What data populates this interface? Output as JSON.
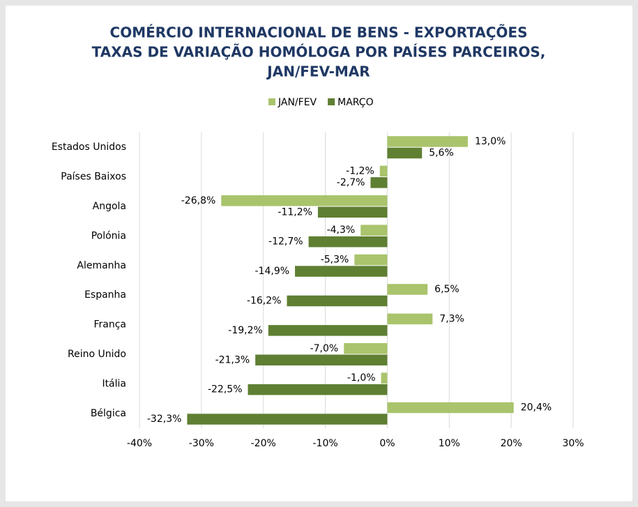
{
  "chart_data": {
    "type": "barh",
    "title": [
      "COMÉRCIO INTERNACIONAL DE BENS - EXPORTAÇÕES",
      "TAXAS DE VARIAÇÃO HOMÓLOGA POR PAÍSES PARCEIROS,",
      "JAN/FEV-MAR"
    ],
    "categories": [
      "Estados Unidos",
      "Países Baixos",
      "Angola",
      "Polónia",
      "Alemanha",
      "Espanha",
      "França",
      "Reino Unido",
      "Itália",
      "Bélgica"
    ],
    "series": [
      {
        "name": "JAN/FEV",
        "color": "#a9c46c",
        "values": [
          13.0,
          -1.2,
          -26.8,
          -4.3,
          -5.3,
          6.5,
          7.3,
          -7.0,
          -1.0,
          20.4
        ],
        "value_labels": [
          "13,0%",
          "-1,2%",
          "-26,8%",
          "-4,3%",
          "-5,3%",
          "6,5%",
          "7,3%",
          "-7,0%",
          "-1,0%",
          "20,4%"
        ]
      },
      {
        "name": "MARÇO",
        "color": "#5f7f32",
        "values": [
          5.6,
          -2.7,
          -11.2,
          -12.7,
          -14.9,
          -16.2,
          -19.2,
          -21.3,
          -22.5,
          -32.3
        ],
        "value_labels": [
          "5,6%",
          "-2,7%",
          "-11,2%",
          "-12,7%",
          "-14,9%",
          "-16,2%",
          "-19,2%",
          "-21,3%",
          "-22,5%",
          "-32,3%"
        ]
      }
    ],
    "xlim": [
      -40,
      30
    ],
    "xticks": [
      {
        "value": -40,
        "label": "-40%"
      },
      {
        "value": -30,
        "label": "-30%"
      },
      {
        "value": -20,
        "label": "-20%"
      },
      {
        "value": -10,
        "label": "-10%"
      },
      {
        "value": 0,
        "label": "0%"
      },
      {
        "value": 10,
        "label": "10%"
      },
      {
        "value": 20,
        "label": "20%"
      },
      {
        "value": 30,
        "label": "30%"
      }
    ],
    "grid": true,
    "legend": "top"
  }
}
